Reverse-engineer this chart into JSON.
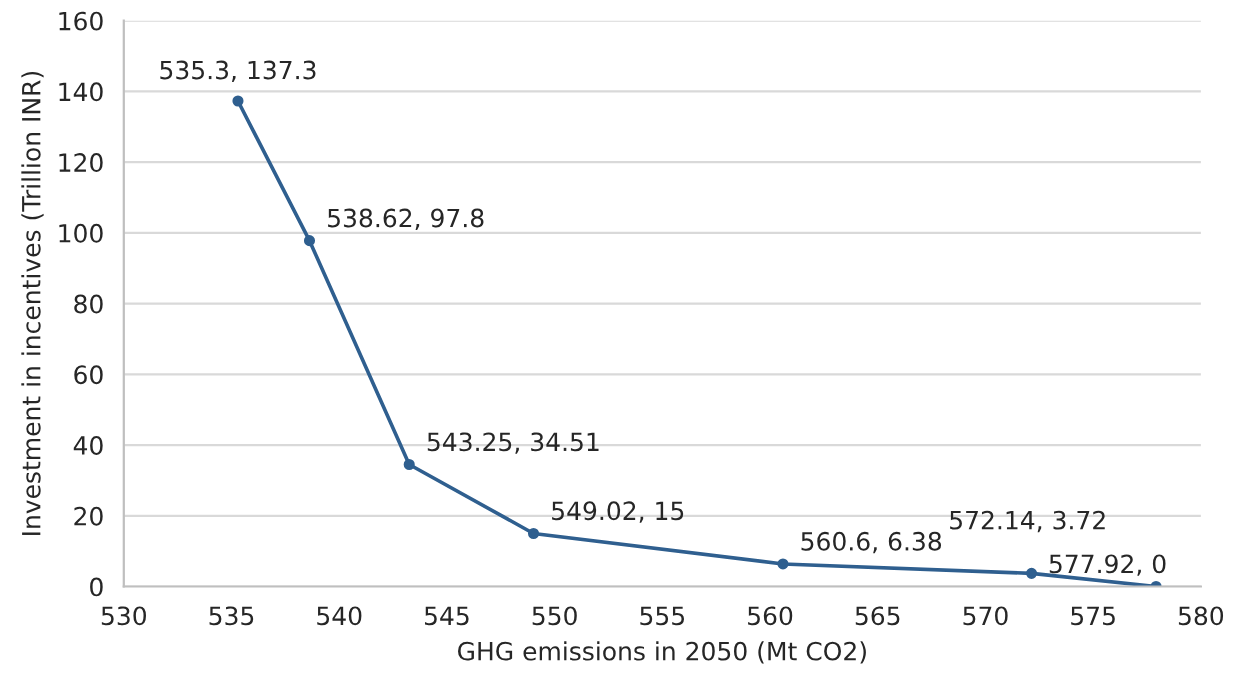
{
  "chart_data": {
    "type": "scatter",
    "xlabel": "GHG emissions in 2050 (Mt CO2)",
    "ylabel": "Investment in incentives (Trillion INR)",
    "x": [
      535.3,
      538.62,
      543.25,
      549.02,
      560.6,
      572.14,
      577.92
    ],
    "series": [
      {
        "color": "#2f5f8f",
        "values": [
          137.3,
          97.8,
          34.51,
          15,
          6.38,
          3.72,
          0
        ],
        "value_labels": [
          "535.3, 137.3",
          "538.62, 97.8",
          "543.25, 34.51",
          "549.02, 15",
          "560.6, 6.38",
          "572.14, 3.72",
          "577.92, 0"
        ]
      }
    ],
    "xlim": [
      530,
      580
    ],
    "xticks": [
      530,
      535,
      540,
      545,
      550,
      555,
      560,
      565,
      570,
      575,
      580
    ],
    "ylim": [
      0,
      160
    ],
    "yticks": [
      0,
      20,
      40,
      60,
      80,
      100,
      120,
      140,
      160
    ],
    "grid": "y",
    "marker": "circle",
    "line_style": "solid",
    "legend": false
  }
}
